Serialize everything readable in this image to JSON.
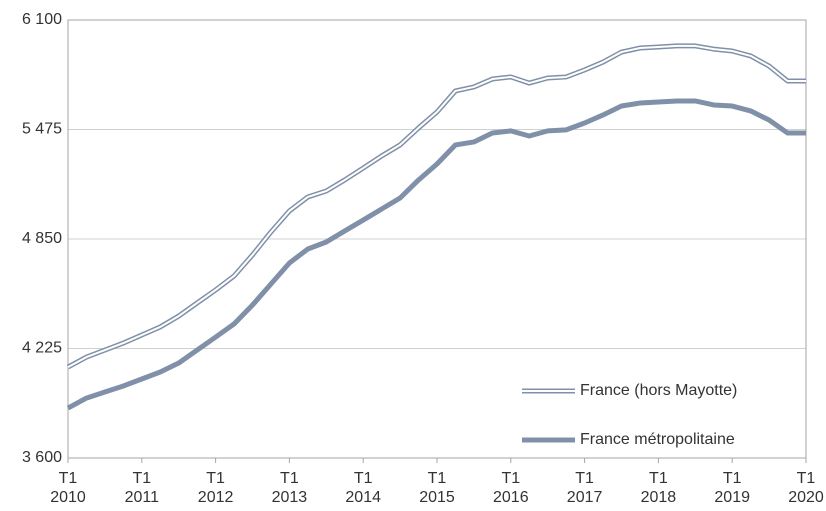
{
  "chart_data": {
    "type": "line",
    "categories": [
      "T1 2010",
      null,
      null,
      null,
      "T1 2011",
      null,
      null,
      null,
      "T1 2012",
      null,
      null,
      null,
      "T1 2013",
      null,
      null,
      null,
      "T1 2014",
      null,
      null,
      null,
      "T1 2015",
      null,
      null,
      null,
      "T1 2016",
      null,
      null,
      null,
      "T1 2017",
      null,
      null,
      null,
      "T1 2018",
      null,
      null,
      null,
      "T1 2019",
      null,
      null,
      null,
      "T1 2020"
    ],
    "series": [
      {
        "name": "France (hors Mayotte)",
        "color": "#8090a8",
        "style": "double",
        "values": [
          4119,
          4176,
          4216,
          4256,
          4302,
          4348,
          4410,
          4485,
          4559,
          4639,
          4759,
          4890,
          5010,
          5090,
          5124,
          5187,
          5255,
          5324,
          5387,
          5484,
          5575,
          5695,
          5718,
          5763,
          5775,
          5740,
          5769,
          5775,
          5815,
          5860,
          5917,
          5940,
          5946,
          5952,
          5952,
          5934,
          5923,
          5895,
          5837,
          5752,
          5752
        ]
      },
      {
        "name": "France métropolitaine",
        "color": "#8090a8",
        "style": "solid",
        "values": [
          3885,
          3942,
          3977,
          4011,
          4051,
          4091,
          4142,
          4216,
          4290,
          4365,
          4473,
          4593,
          4713,
          4793,
          4833,
          4896,
          4958,
          5021,
          5084,
          5187,
          5278,
          5387,
          5404,
          5455,
          5467,
          5438,
          5467,
          5473,
          5512,
          5558,
          5609,
          5626,
          5632,
          5638,
          5638,
          5615,
          5609,
          5581,
          5529,
          5455,
          5455
        ]
      }
    ],
    "ylim": [
      3600,
      6100
    ],
    "yticks": [
      {
        "value": 3600,
        "label": "3 600"
      },
      {
        "value": 4225,
        "label": "4 225"
      },
      {
        "value": 4850,
        "label": "4 850"
      },
      {
        "value": 5475,
        "label": "5 475"
      },
      {
        "value": 6100,
        "label": "6 100"
      }
    ],
    "grid": true,
    "legend": "bottom-right"
  }
}
